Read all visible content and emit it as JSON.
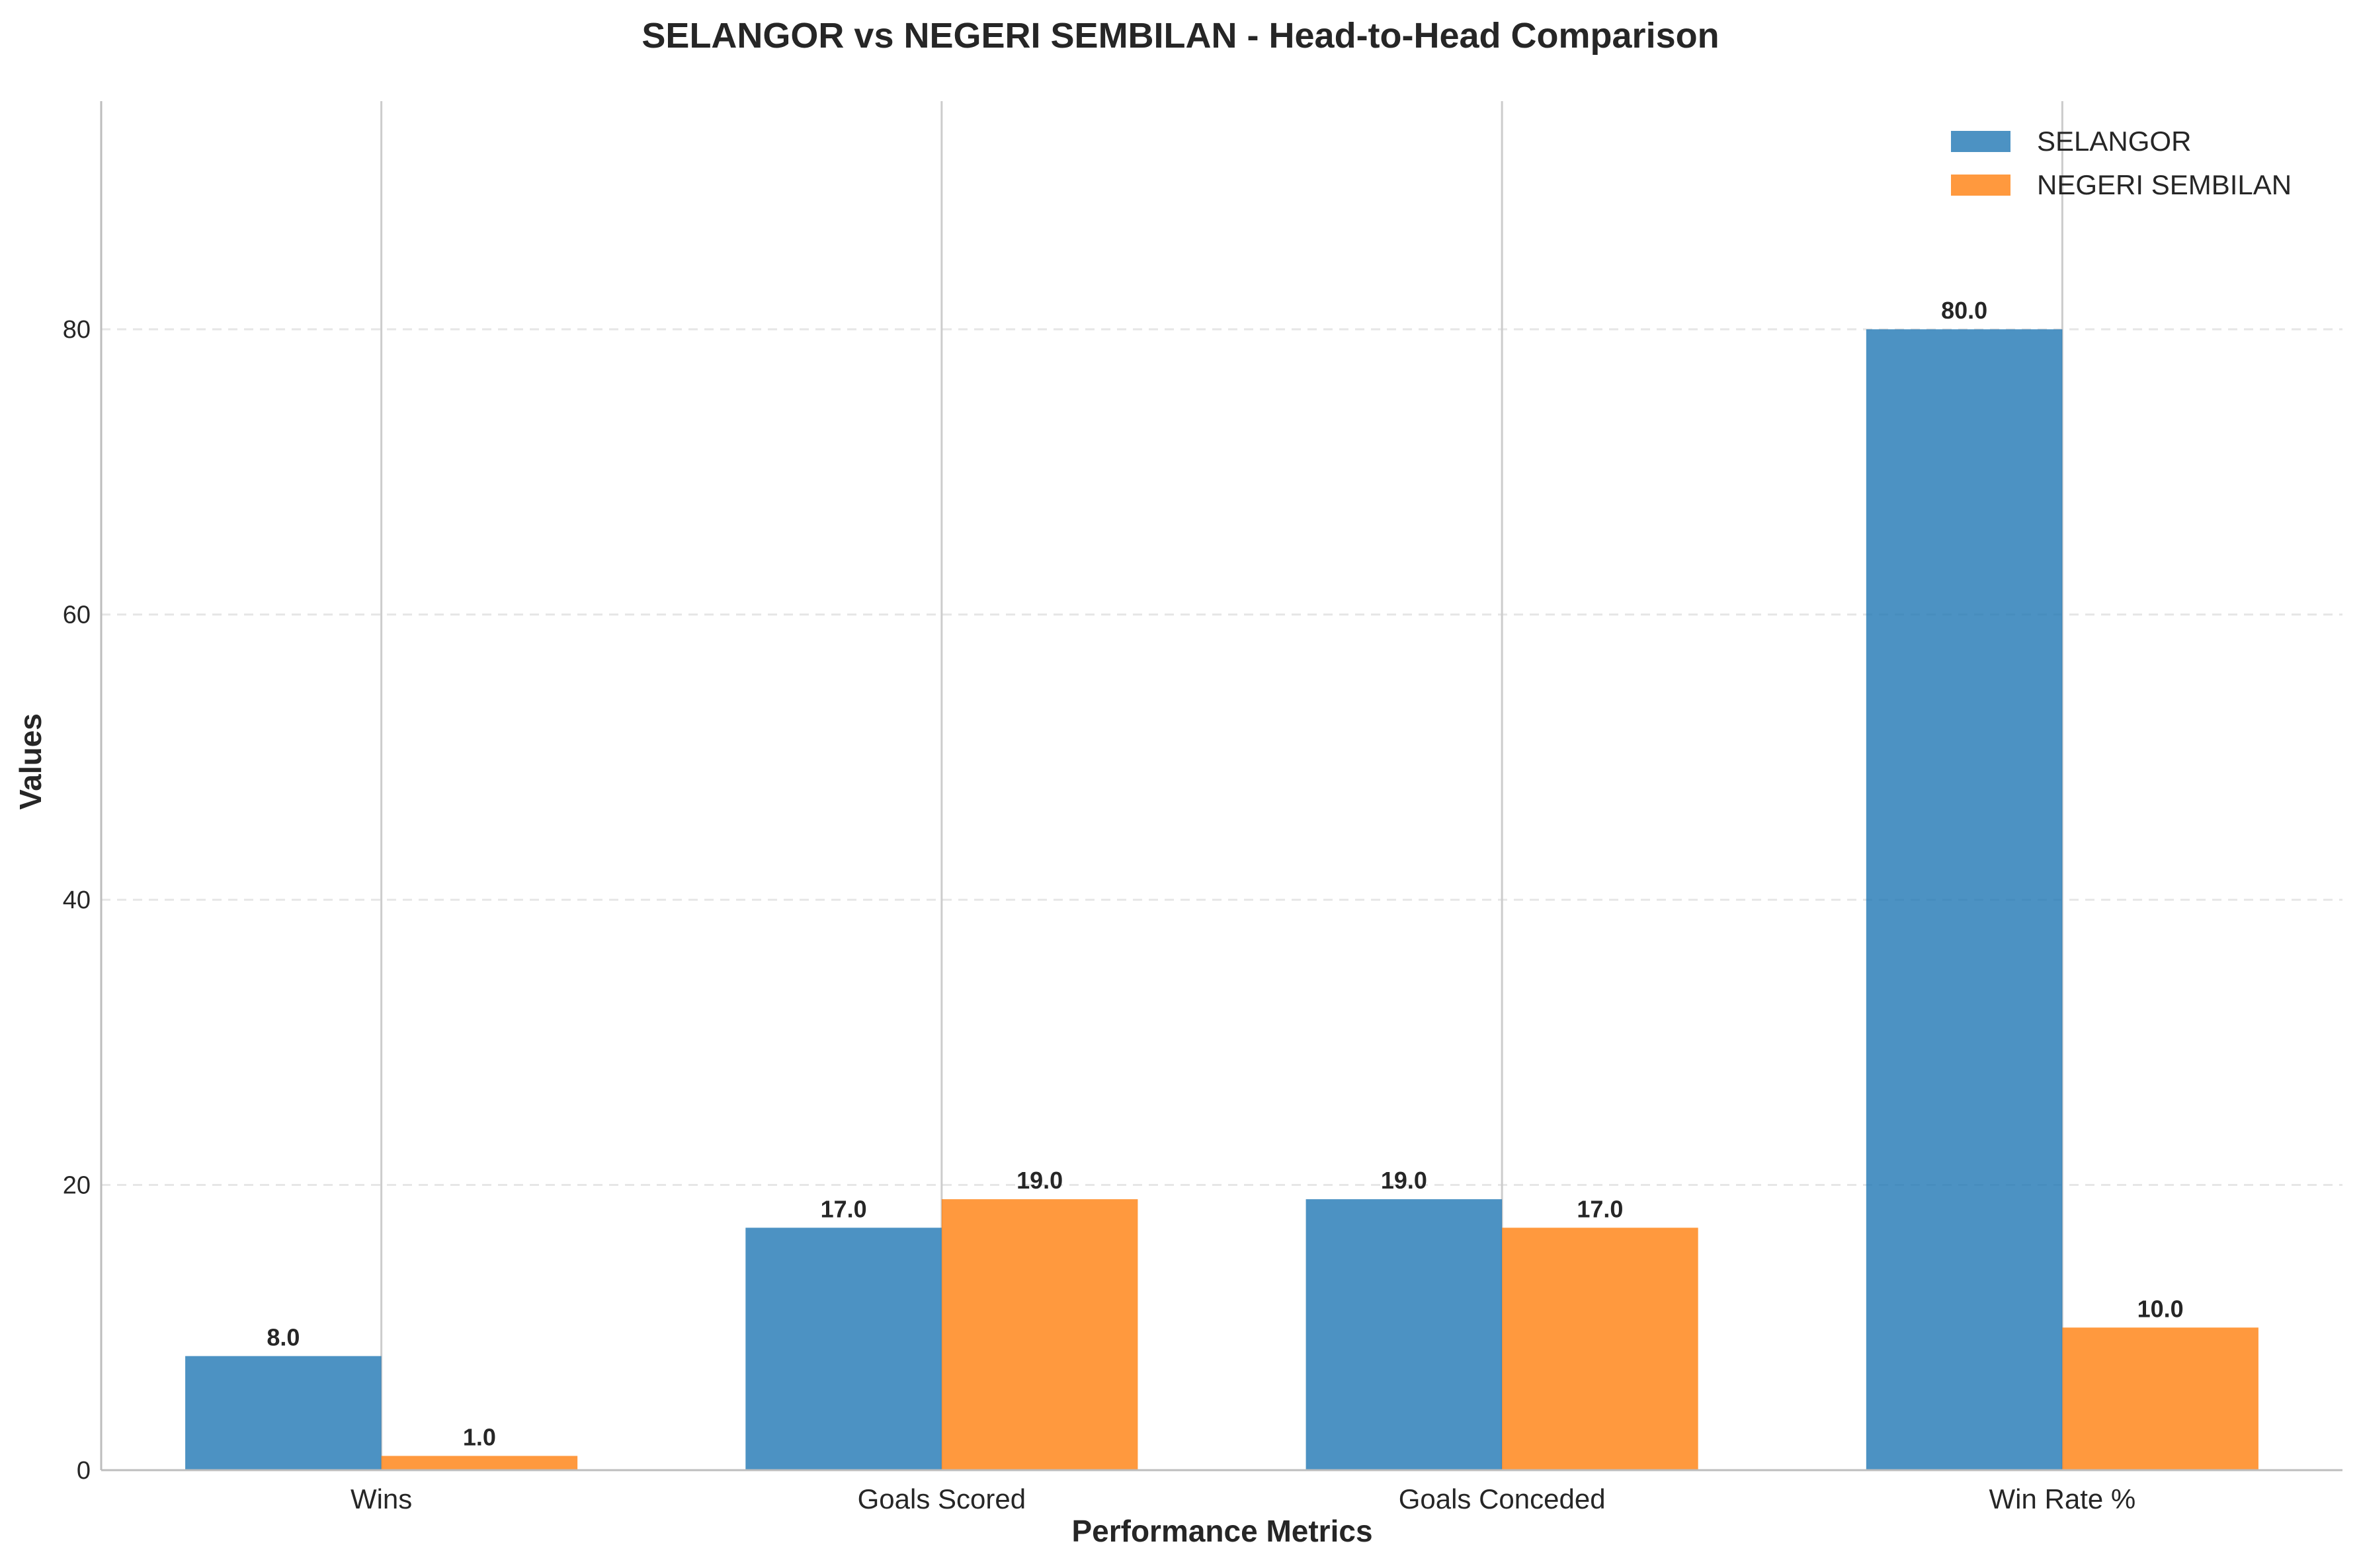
{
  "chart_data": {
    "type": "bar",
    "title": "SELANGOR vs NEGERI SEMBILAN - Head-to-Head Comparison",
    "xlabel": "Performance Metrics",
    "ylabel": "Values",
    "categories": [
      "Wins",
      "Goals Scored",
      "Goals Conceded",
      "Win Rate %"
    ],
    "series": [
      {
        "name": "SELANGOR",
        "values": [
          8.0,
          17.0,
          19.0,
          80.0
        ],
        "color": "#1f77b4",
        "labels": [
          "8.0",
          "17.0",
          "19.0",
          "80.0"
        ]
      },
      {
        "name": "NEGERI SEMBILAN",
        "values": [
          1.0,
          19.0,
          17.0,
          10.0
        ],
        "color": "#ff7f0e",
        "labels": [
          "1.0",
          "19.0",
          "17.0",
          "10.0"
        ]
      }
    ],
    "ylim": [
      0,
      96
    ],
    "yticks": [
      0,
      20,
      40,
      60,
      80
    ],
    "ytick_labels": [
      "0",
      "20",
      "40",
      "60",
      "80"
    ],
    "grid": "y dashed, vertical lines at categories",
    "legend_position": "top-right"
  }
}
